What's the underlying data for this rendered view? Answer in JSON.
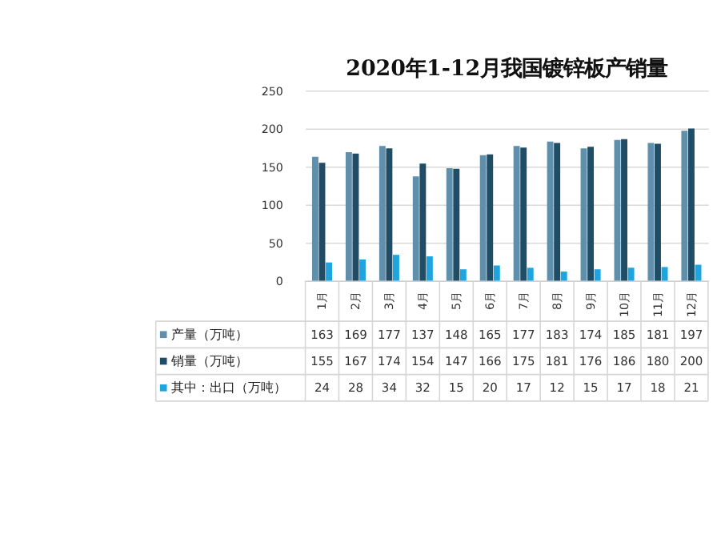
{
  "chart_data": {
    "type": "bar",
    "title": "2020年1-12月我国镀锌板产销量",
    "categories": [
      "1月",
      "2月",
      "3月",
      "4月",
      "5月",
      "6月",
      "7月",
      "8月",
      "9月",
      "10月",
      "11月",
      "12月"
    ],
    "series": [
      {
        "name": "产量（万吨）",
        "color": "#5f8fab",
        "values": [
          163,
          169,
          177,
          137,
          148,
          165,
          177,
          183,
          174,
          185,
          181,
          197
        ]
      },
      {
        "name": "销量（万吨）",
        "color": "#1f4d66",
        "values": [
          155,
          167,
          174,
          154,
          147,
          166,
          175,
          181,
          176,
          186,
          180,
          200
        ]
      },
      {
        "name": "其中：出口（万吨）",
        "color": "#1ea5e0",
        "values": [
          24,
          28,
          34,
          32,
          15,
          20,
          17,
          12,
          15,
          17,
          18,
          21
        ]
      }
    ],
    "ylim": [
      0,
      250
    ],
    "yticks": [
      0,
      50,
      100,
      150,
      200,
      250
    ],
    "grid": "y",
    "legend": "bottom",
    "data_labels": true
  }
}
